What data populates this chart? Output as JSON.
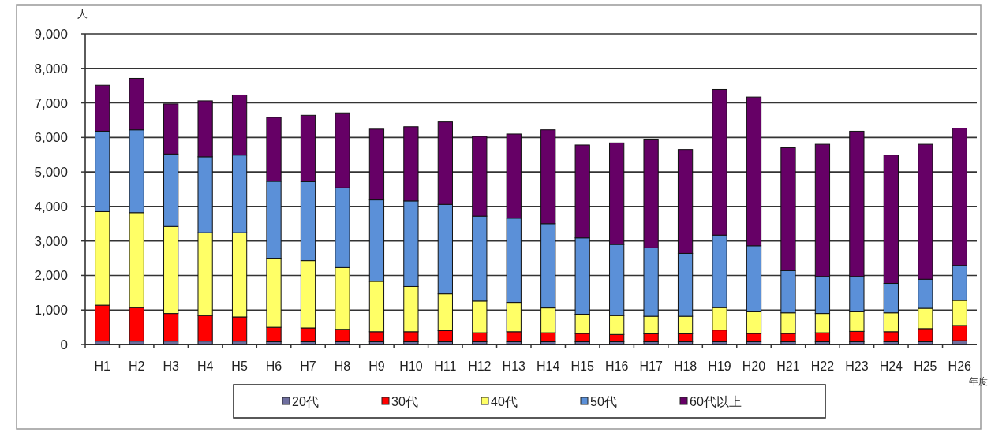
{
  "chart_data": {
    "type": "bar",
    "stacked": true,
    "xlabel": "年度",
    "ylabel": "人",
    "categories": [
      "H1",
      "H2",
      "H3",
      "H4",
      "H5",
      "H6",
      "H7",
      "H8",
      "H9",
      "H10",
      "H11",
      "H12",
      "H13",
      "H14",
      "H15",
      "H16",
      "H17",
      "H18",
      "H19",
      "H20",
      "H21",
      "H22",
      "H23",
      "H24",
      "H25",
      "H26"
    ],
    "series": [
      {
        "name": "20代",
        "color": "#6f6f9f",
        "values": [
          100,
          100,
          100,
          100,
          100,
          80,
          80,
          80,
          80,
          80,
          80,
          80,
          80,
          80,
          80,
          80,
          80,
          80,
          80,
          80,
          80,
          80,
          80,
          80,
          80,
          110
        ]
      },
      {
        "name": "30代",
        "color": "#ff0000",
        "values": [
          1040,
          970,
          800,
          740,
          700,
          420,
          400,
          360,
          290,
          290,
          320,
          260,
          290,
          260,
          240,
          210,
          230,
          230,
          340,
          240,
          240,
          260,
          300,
          290,
          380,
          440
        ]
      },
      {
        "name": "40代",
        "color": "#ffff66",
        "values": [
          2710,
          2750,
          2520,
          2400,
          2440,
          2000,
          1950,
          1790,
          1460,
          1310,
          1070,
          920,
          850,
          720,
          560,
          550,
          510,
          510,
          650,
          630,
          600,
          560,
          570,
          550,
          590,
          730
        ]
      },
      {
        "name": "50代",
        "color": "#5b90d8",
        "values": [
          2330,
          2400,
          2100,
          2200,
          2250,
          2230,
          2290,
          2310,
          2360,
          2480,
          2590,
          2460,
          2440,
          2440,
          2210,
          2060,
          1980,
          1820,
          2100,
          1910,
          1220,
          1070,
          1020,
          850,
          840,
          1010
        ]
      },
      {
        "name": "60代以上",
        "color": "#660066",
        "values": [
          1330,
          1490,
          1450,
          1620,
          1740,
          1850,
          1920,
          2170,
          2050,
          2150,
          2390,
          2310,
          2440,
          2720,
          2690,
          2940,
          3150,
          3010,
          4220,
          4310,
          3560,
          3830,
          4210,
          3720,
          3910,
          3980
        ]
      }
    ],
    "ylim": [
      0,
      9000
    ],
    "yticks": [
      {
        "value": 0,
        "label": "0"
      },
      {
        "value": 1000,
        "label": "1,000"
      },
      {
        "value": 2000,
        "label": "2,000"
      },
      {
        "value": 3000,
        "label": "3,000"
      },
      {
        "value": 4000,
        "label": "4,000"
      },
      {
        "value": 5000,
        "label": "5,000"
      },
      {
        "value": 6000,
        "label": "6,000"
      },
      {
        "value": 7000,
        "label": "7,000"
      },
      {
        "value": 8000,
        "label": "8,000"
      },
      {
        "value": 9000,
        "label": "9,000"
      }
    ],
    "grid": "y",
    "legend": "bottom"
  }
}
